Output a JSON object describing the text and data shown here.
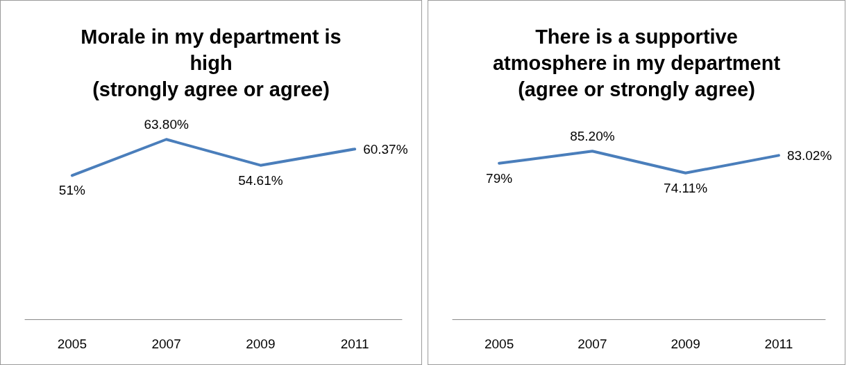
{
  "chart_data": [
    {
      "type": "line",
      "title": "Morale in my department is\nhigh\n(strongly agree or agree)",
      "categories": [
        "2005",
        "2007",
        "2009",
        "2011"
      ],
      "series": [
        {
          "color": "#4a7ebb",
          "values": [
            51,
            63.8,
            54.61,
            60.37
          ],
          "value_labels": [
            "51%",
            "63.80%",
            "54.61%",
            "60.37%"
          ]
        }
      ],
      "grid": false,
      "marker": "none"
    },
    {
      "type": "line",
      "title": "There is a supportive\natmosphere in my department\n(agree or strongly agree)",
      "categories": [
        "2005",
        "2007",
        "2009",
        "2011"
      ],
      "series": [
        {
          "color": "#4a7ebb",
          "values": [
            79,
            85.2,
            74.11,
            83.02
          ],
          "value_labels": [
            "79%",
            "85.20%",
            "74.11%",
            "83.02%"
          ]
        }
      ],
      "grid": false,
      "marker": "none"
    }
  ]
}
